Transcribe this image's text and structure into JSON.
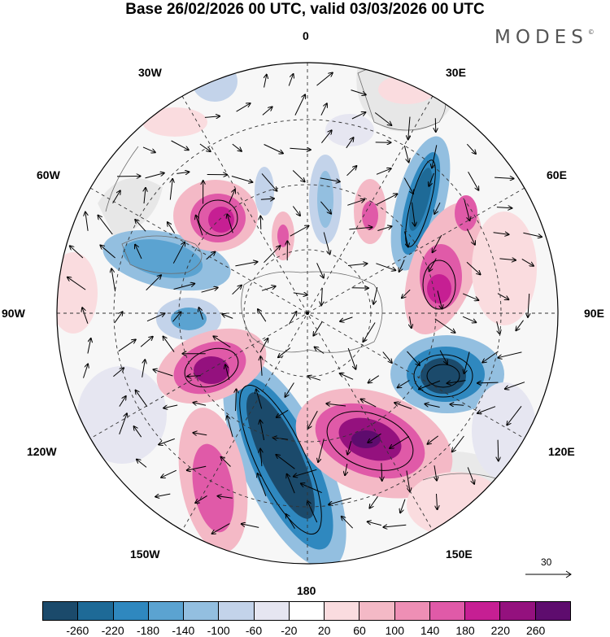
{
  "title": "Base 26/02/2026 00 UTC, valid 03/03/2026 00 UTC",
  "logo": {
    "text": "MODES",
    "mark": "©"
  },
  "longitude_labels": {
    "top": "0",
    "top_right": "30E",
    "right_upper": "60E",
    "right": "90E",
    "right_lower": "120E",
    "bottom_right": "150E",
    "bottom": "180",
    "bottom_left": "150W",
    "left_lower": "120W",
    "left": "90W",
    "left_upper": "60W",
    "top_left": "30W"
  },
  "reference_vector": {
    "label": "30",
    "icon": "arrow-right-icon"
  },
  "colorbar": {
    "colors": [
      "#1b4a6b",
      "#1e6a97",
      "#2f88bf",
      "#5ba3d1",
      "#93bfe0",
      "#c3d3ea",
      "#e6e6f1",
      "#ffffff",
      "#fadcdf",
      "#f4b9c6",
      "#ee8fb5",
      "#e05aa8",
      "#c61f93",
      "#94117e",
      "#5e0c6e"
    ],
    "tick_labels": [
      "-260",
      "-220",
      "-180",
      "-140",
      "-100",
      "-60",
      "-20",
      "20",
      "60",
      "100",
      "140",
      "180",
      "220",
      "260"
    ]
  },
  "map_colors": {
    "ocean_land_bg": "#ececec",
    "coast": "#6d6d6d",
    "grid": "#333333"
  }
}
